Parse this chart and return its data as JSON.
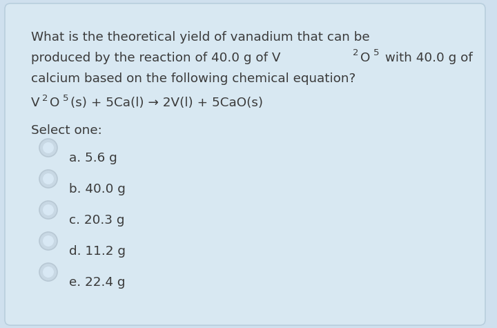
{
  "background_color": "#cfe0ee",
  "text_color": "#3a3a3a",
  "question_line1": "What is the theoretical yield of vanadium that can be",
  "question_line2_parts": [
    {
      "text": "produced by the reaction of 40.0 g of V",
      "sub": false
    },
    {
      "text": "2",
      "sub": true
    },
    {
      "text": "O",
      "sub": false
    },
    {
      "text": "5",
      "sub": true
    },
    {
      "text": " with 40.0 g of",
      "sub": false
    }
  ],
  "question_line3": "calcium based on the following chemical equation?",
  "equation_parts": [
    {
      "text": "V",
      "sub": false
    },
    {
      "text": "2",
      "sub": true
    },
    {
      "text": "O",
      "sub": false
    },
    {
      "text": "5",
      "sub": true
    },
    {
      "text": "(s) + 5Ca(l) → 2V(l) + 5CaO(s)",
      "sub": false
    }
  ],
  "select_one": "Select one:",
  "options": [
    "a. 5.6 g",
    "b. 40.0 g",
    "c. 20.3 g",
    "d. 11.2 g",
    "e. 22.4 g"
  ],
  "circle_edge_color": "#b8c8d4",
  "circle_fill_color": "#c8d8e4",
  "circle_inner_color": "#d8e8f4",
  "font_size_main": 13.2,
  "font_size_sub": 9.5,
  "font_size_options": 13.2,
  "font_size_select": 13.2
}
